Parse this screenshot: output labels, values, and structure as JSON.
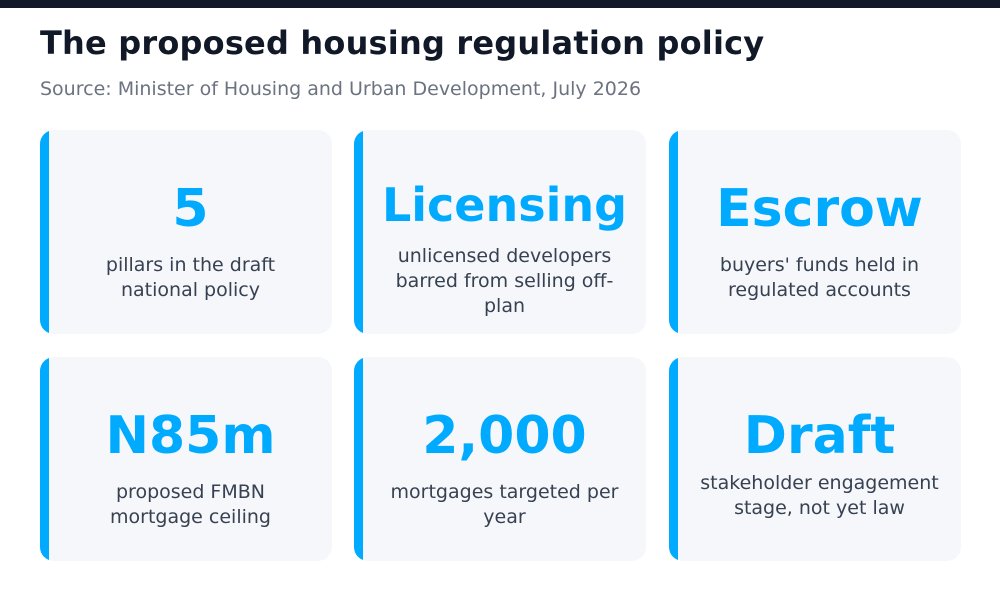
{
  "header": {
    "title": "The proposed housing regulation policy",
    "source": "Source: Minister of Housing and Urban Development, July 2026"
  },
  "colors": {
    "accent": "#00aaff",
    "title": "#111827",
    "card_background": "#f5f7fb",
    "top_bar": "#111827"
  },
  "cards": [
    {
      "value": "5",
      "description": "pillars in the draft national policy"
    },
    {
      "value": "Licensing",
      "description": "unlicensed developers barred from selling off-plan"
    },
    {
      "value": "Escrow",
      "description": "buyers' funds held in regulated accounts"
    },
    {
      "value": "N85m",
      "description": "proposed FMBN mortgage ceiling"
    },
    {
      "value": "2,000",
      "description": "mortgages targeted per year"
    },
    {
      "value": "Draft",
      "description": "stakeholder engagement stage, not yet law"
    }
  ]
}
